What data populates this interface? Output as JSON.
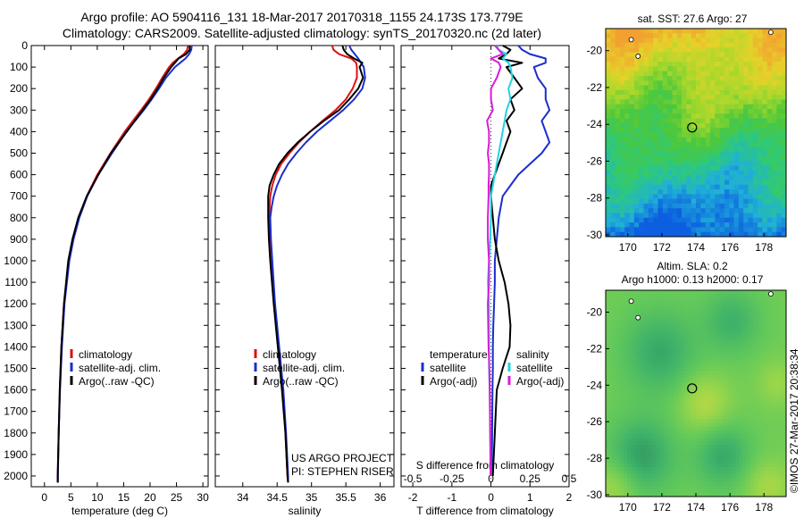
{
  "header": {
    "line1": "Argo profile: AO 5904116_131 18-Mar-2017 20170318_1155 24.173S 173.779E",
    "line2": "Climatology: CARS2009. Satellite-adjusted climatology: synTS_20170320.nc (2d later)"
  },
  "credit": {
    "project": "US ARGO PROJECT",
    "pi": "PI: STEPHEN RISER",
    "stamp": "©IMOS 27-Mar-2017 20:38:34"
  },
  "colors": {
    "climatology": "#dd1111",
    "satellite": "#1a2ecc",
    "argo": "#000000",
    "salinity_satellite": "#22d4e0",
    "salinity_argo": "#d81bd8",
    "zero_line": "#333333"
  },
  "chart_data": [
    {
      "id": "temperature",
      "type": "line",
      "xlabel": "temperature (deg C)",
      "ylabel": "",
      "xlim": [
        -2.5,
        31
      ],
      "ylim": [
        2050,
        0
      ],
      "xticks": [
        0,
        5,
        10,
        15,
        20,
        25,
        30
      ],
      "yticks": [
        0,
        100,
        200,
        300,
        400,
        500,
        600,
        700,
        800,
        900,
        1000,
        1100,
        1200,
        1300,
        1400,
        1500,
        1600,
        1700,
        1800,
        1900,
        2000
      ],
      "legend": {
        "position": "lower-center",
        "entries": [
          "climatology",
          "satellite-adj. clim.",
          "Argo(..raw -QC)"
        ]
      },
      "depth": [
        0,
        20,
        40,
        60,
        80,
        100,
        150,
        200,
        250,
        300,
        400,
        500,
        600,
        700,
        800,
        900,
        1000,
        1200,
        1400,
        1600,
        1800,
        2000,
        2030
      ],
      "series": [
        {
          "name": "climatology",
          "color_key": "climatology",
          "values": [
            27.2,
            27.0,
            26.4,
            25.3,
            24.3,
            23.6,
            22.3,
            21.1,
            19.8,
            18.3,
            15.2,
            12.5,
            10.0,
            8.0,
            6.5,
            5.4,
            4.6,
            3.7,
            3.2,
            2.9,
            2.7,
            2.5,
            2.5
          ]
        },
        {
          "name": "satellite-adj. clim.",
          "color_key": "satellite",
          "values": [
            27.9,
            27.8,
            27.4,
            26.7,
            25.7,
            24.7,
            23.0,
            21.7,
            20.3,
            18.8,
            15.5,
            12.8,
            10.2,
            8.1,
            6.6,
            5.5,
            4.7,
            3.8,
            3.3,
            2.95,
            2.7,
            2.55,
            2.55
          ]
        },
        {
          "name": "Argo(..raw -QC)",
          "color_key": "argo",
          "values": [
            27.5,
            27.5,
            26.8,
            25.4,
            24.7,
            24.0,
            22.6,
            21.4,
            20.1,
            18.6,
            15.6,
            12.6,
            10.2,
            8.0,
            6.4,
            5.3,
            4.5,
            3.7,
            3.2,
            2.9,
            2.7,
            2.5,
            2.5
          ]
        }
      ]
    },
    {
      "id": "salinity",
      "type": "line",
      "xlabel": "salinity",
      "ylabel": "",
      "xlim": [
        33.6,
        36.2
      ],
      "ylim": [
        2050,
        0
      ],
      "xticks": [
        34,
        34.5,
        35,
        35.5,
        36
      ],
      "legend": {
        "position": "lower-center",
        "entries": [
          "climatology",
          "satellite-adj. clim.",
          "Argo(..raw -QC)"
        ]
      },
      "depth": [
        0,
        20,
        40,
        60,
        80,
        100,
        150,
        200,
        250,
        300,
        350,
        400,
        450,
        500,
        550,
        600,
        650,
        700,
        750,
        800,
        900,
        1000,
        1200,
        1400,
        1600,
        1800,
        2000,
        2030
      ],
      "series": [
        {
          "name": "climatology",
          "color_key": "climatology",
          "values": [
            35.3,
            35.32,
            35.4,
            35.58,
            35.65,
            35.66,
            35.66,
            35.6,
            35.5,
            35.35,
            35.16,
            34.98,
            34.82,
            34.68,
            34.56,
            34.48,
            34.43,
            34.4,
            34.39,
            34.39,
            34.4,
            34.42,
            34.46,
            34.52,
            34.58,
            34.62,
            34.65,
            34.66
          ]
        },
        {
          "name": "satellite-adj. clim.",
          "color_key": "satellite",
          "values": [
            35.55,
            35.58,
            35.63,
            35.68,
            35.72,
            35.76,
            35.78,
            35.74,
            35.62,
            35.46,
            35.27,
            35.08,
            34.92,
            34.78,
            34.66,
            34.57,
            34.5,
            34.45,
            34.42,
            34.4,
            34.41,
            34.43,
            34.47,
            34.53,
            34.59,
            34.63,
            34.66,
            34.66
          ]
        },
        {
          "name": "Argo(..raw -QC)",
          "color_key": "argo",
          "values": [
            35.45,
            35.47,
            35.52,
            35.62,
            35.74,
            35.7,
            35.75,
            35.68,
            35.55,
            35.4,
            35.18,
            34.98,
            34.8,
            34.65,
            34.53,
            34.45,
            34.39,
            34.37,
            34.37,
            34.37,
            34.38,
            34.4,
            34.45,
            34.51,
            34.57,
            34.62,
            34.65,
            34.66
          ]
        }
      ]
    },
    {
      "id": "difference",
      "type": "line",
      "xlabel": "T difference from climatology",
      "xlabel_top": "S difference from climatology",
      "xlim": [
        -2.3,
        2.0
      ],
      "ylim": [
        2050,
        0
      ],
      "xticks": [
        -2,
        -1,
        0,
        1,
        2
      ],
      "xticks_top": [
        -0.5,
        -0.25,
        0,
        0.25,
        0.5
      ],
      "legend": {
        "position": "lower-center",
        "groups": [
          {
            "title": "temperature",
            "entries": [
              "satellite",
              "Argo(-adj)"
            ]
          },
          {
            "title": "salinity",
            "entries": [
              "satellite",
              "Argo(-adj)"
            ]
          }
        ]
      },
      "depth": [
        0,
        20,
        40,
        60,
        80,
        100,
        150,
        200,
        250,
        300,
        350,
        400,
        450,
        500,
        550,
        600,
        650,
        700,
        800,
        900,
        1000,
        1100,
        1200,
        1300,
        1400,
        1500,
        1600,
        1800,
        2000
      ],
      "series": [
        {
          "name": "temperature satellite",
          "color_key": "satellite",
          "values": [
            0.7,
            0.8,
            1.0,
            1.4,
            1.4,
            1.1,
            1.2,
            1.4,
            1.4,
            1.5,
            1.3,
            1.4,
            1.5,
            1.3,
            1.0,
            0.7,
            0.5,
            0.3,
            0.2,
            0.15,
            0.1,
            0.1,
            0.08,
            0.06,
            0.05,
            0.05,
            0.04,
            0.03,
            0.02
          ]
        },
        {
          "name": "temperature Argo(-adj)",
          "color_key": "argo",
          "values": [
            0.3,
            0.5,
            0.4,
            0.2,
            0.8,
            0.4,
            0.6,
            0.8,
            0.5,
            0.6,
            0.4,
            0.5,
            0.4,
            0.3,
            0.2,
            0.1,
            0.0,
            0.0,
            0.05,
            0.1,
            0.2,
            0.35,
            0.45,
            0.5,
            0.48,
            0.3,
            0.15,
            0.1,
            0.05
          ]
        },
        {
          "name": "salinity satellite",
          "color_key": "salinity_satellite",
          "values": [
            0.15,
            0.2,
            0.4,
            0.3,
            0.45,
            0.5,
            0.55,
            0.45,
            0.5,
            0.4,
            0.35,
            0.3,
            0.25,
            0.2,
            0.15,
            0.1,
            0.05,
            0.0,
            0.0,
            -0.02,
            -0.05,
            -0.08,
            -0.05,
            -0.05,
            -0.05,
            -0.05,
            -0.03,
            -0.02,
            0.0
          ]
        },
        {
          "name": "salinity Argo(-adj)",
          "color_key": "salinity_argo",
          "values": [
            0.1,
            0.2,
            0.3,
            0.0,
            0.2,
            0.25,
            0.15,
            0.0,
            0.0,
            0.05,
            -0.1,
            -0.05,
            -0.05,
            -0.08,
            -0.05,
            -0.05,
            -0.06,
            -0.06,
            -0.08,
            -0.08,
            -0.05,
            -0.05,
            -0.08,
            -0.07,
            -0.06,
            -0.04,
            -0.03,
            -0.02,
            -0.01
          ]
        }
      ]
    },
    {
      "id": "sst-map",
      "type": "heatmap",
      "title": "sat. SST: 27.6 Argo: 27",
      "xlim": [
        168.7,
        179.3
      ],
      "ylim": [
        -30.1,
        -18.8
      ],
      "xticks": [
        170,
        172,
        174,
        176,
        178
      ],
      "yticks": [
        -20,
        -22,
        -24,
        -26,
        -28,
        -30
      ],
      "marker": {
        "lon": 173.779,
        "lat": -24.173
      },
      "colormap": [
        "#0d5fe0",
        "#1fb0d8",
        "#2ec97a",
        "#4ec83a",
        "#a6d82c",
        "#e6d22a",
        "#f2a030"
      ]
    },
    {
      "id": "sla-map",
      "type": "heatmap",
      "title": "Altim. SLA: 0.2",
      "subtitle": "Argo h1000: 0.13 h2000: 0.17",
      "xlim": [
        168.7,
        179.3
      ],
      "ylim": [
        -30.1,
        -18.8
      ],
      "xticks": [
        170,
        172,
        174,
        176,
        178
      ],
      "yticks": [
        -20,
        -22,
        -24,
        -26,
        -28,
        -30
      ],
      "marker": {
        "lon": 173.779,
        "lat": -24.173
      },
      "colormap": [
        "#2a8a5a",
        "#3fb26a",
        "#62c95a",
        "#9ad64a",
        "#d6d840",
        "#f2c63a"
      ]
    }
  ]
}
